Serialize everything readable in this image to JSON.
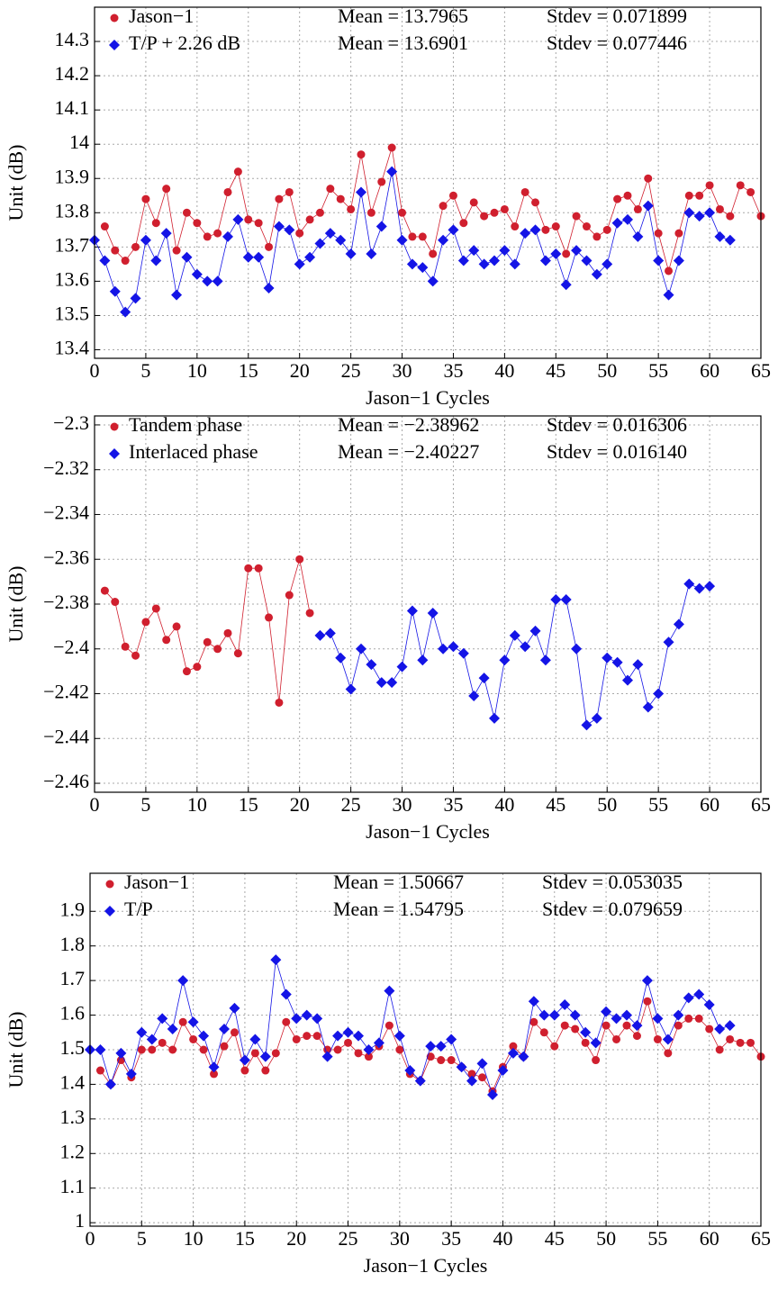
{
  "chart_data": [
    {
      "type": "line",
      "xlabel": "Jason−1 Cycles",
      "ylabel": "Unit (dB)",
      "grid": true,
      "legend": "upper left",
      "xlim": [
        0,
        65
      ],
      "xticks": [
        0,
        5,
        10,
        15,
        20,
        25,
        30,
        35,
        40,
        45,
        50,
        55,
        60,
        65
      ],
      "ylim": [
        13.375,
        14.4
      ],
      "yticks": [
        13.4,
        13.5,
        13.6,
        13.7,
        13.8,
        13.9,
        14,
        14.1,
        14.2,
        14.3
      ],
      "series": [
        {
          "name": "Jason−1",
          "mean_label": "Mean = 13.7965",
          "stdev_label": "Stdev = 0.071899",
          "color": "#d01f2e",
          "marker": "circle",
          "x": [
            1,
            2,
            3,
            4,
            5,
            6,
            7,
            8,
            9,
            10,
            11,
            12,
            13,
            14,
            15,
            16,
            17,
            18,
            19,
            20,
            21,
            22,
            23,
            24,
            25,
            26,
            27,
            28,
            29,
            30,
            31,
            32,
            33,
            34,
            35,
            36,
            37,
            38,
            39,
            40,
            41,
            42,
            43,
            44,
            45,
            46,
            47,
            48,
            49,
            50,
            51,
            52,
            53,
            54,
            55,
            56,
            57,
            58,
            59,
            60,
            61,
            62,
            63,
            64,
            65
          ],
          "values": [
            13.76,
            13.69,
            13.66,
            13.7,
            13.84,
            13.77,
            13.87,
            13.69,
            13.8,
            13.77,
            13.73,
            13.74,
            13.86,
            13.92,
            13.78,
            13.77,
            13.7,
            13.84,
            13.86,
            13.74,
            13.78,
            13.8,
            13.87,
            13.84,
            13.81,
            13.97,
            13.8,
            13.89,
            13.99,
            13.8,
            13.73,
            13.73,
            13.68,
            13.82,
            13.85,
            13.77,
            13.83,
            13.79,
            13.8,
            13.81,
            13.76,
            13.86,
            13.83,
            13.75,
            13.76,
            13.68,
            13.79,
            13.76,
            13.73,
            13.75,
            13.84,
            13.85,
            13.81,
            13.9,
            13.74,
            13.63,
            13.74,
            13.85,
            13.85,
            13.88,
            13.81,
            13.79,
            13.88,
            13.86,
            13.79
          ]
        },
        {
          "name": "T/P + 2.26 dB",
          "mean_label": "Mean = 13.6901",
          "stdev_label": "Stdev = 0.077446",
          "color": "#1414e6",
          "marker": "diamond",
          "x": [
            0,
            1,
            2,
            3,
            4,
            5,
            6,
            7,
            8,
            9,
            10,
            11,
            12,
            13,
            14,
            15,
            16,
            17,
            18,
            19,
            20,
            21,
            22,
            23,
            24,
            25,
            26,
            27,
            28,
            29,
            30,
            31,
            32,
            33,
            34,
            35,
            36,
            37,
            38,
            39,
            40,
            41,
            42,
            43,
            44,
            45,
            46,
            47,
            48,
            49,
            50,
            51,
            52,
            53,
            54,
            55,
            56,
            57,
            58,
            59,
            60,
            61,
            62
          ],
          "values": [
            13.72,
            13.66,
            13.57,
            13.51,
            13.55,
            13.72,
            13.66,
            13.74,
            13.56,
            13.67,
            13.62,
            13.6,
            13.6,
            13.73,
            13.78,
            13.67,
            13.67,
            13.58,
            13.76,
            13.75,
            13.65,
            13.67,
            13.71,
            13.74,
            13.72,
            13.68,
            13.86,
            13.68,
            13.76,
            13.92,
            13.72,
            13.65,
            13.64,
            13.6,
            13.72,
            13.75,
            13.66,
            13.69,
            13.65,
            13.66,
            13.69,
            13.65,
            13.74,
            13.75,
            13.66,
            13.68,
            13.59,
            13.69,
            13.66,
            13.62,
            13.65,
            13.77,
            13.78,
            13.73,
            13.82,
            13.66,
            13.56,
            13.66,
            13.8,
            13.79,
            13.8,
            13.73,
            13.72
          ]
        }
      ]
    },
    {
      "type": "line",
      "xlabel": "Jason−1 Cycles",
      "ylabel": "Unit (dB)",
      "grid": true,
      "legend": "upper left",
      "xlim": [
        0,
        65
      ],
      "xticks": [
        0,
        5,
        10,
        15,
        20,
        25,
        30,
        35,
        40,
        45,
        50,
        55,
        60,
        65
      ],
      "ylim": [
        -2.464,
        -2.296
      ],
      "yticks": [
        {
          "value": -2.46,
          "label": "−2.46"
        },
        {
          "value": -2.44,
          "label": "−2.44"
        },
        {
          "value": -2.42,
          "label": "−2.42"
        },
        {
          "value": -2.4,
          "label": "−2.4"
        },
        {
          "value": -2.38,
          "label": "−2.38"
        },
        {
          "value": -2.36,
          "label": "−2.36"
        },
        {
          "value": -2.34,
          "label": "−2.34"
        },
        {
          "value": -2.32,
          "label": "−2.32"
        },
        {
          "value": -2.3,
          "label": "−2.3"
        }
      ],
      "series": [
        {
          "name": "Tandem phase",
          "mean_label": "Mean = −2.38962",
          "stdev_label": "Stdev = 0.016306",
          "color": "#d01f2e",
          "marker": "circle",
          "x": [
            1,
            2,
            3,
            4,
            5,
            6,
            7,
            8,
            9,
            10,
            11,
            12,
            13,
            14,
            15,
            16,
            17,
            18,
            19,
            20,
            21
          ],
          "values": [
            -2.374,
            -2.379,
            -2.399,
            -2.403,
            -2.388,
            -2.382,
            -2.396,
            -2.39,
            -2.41,
            -2.408,
            -2.397,
            -2.4,
            -2.393,
            -2.402,
            -2.364,
            -2.364,
            -2.386,
            -2.424,
            -2.376,
            -2.36,
            -2.384
          ]
        },
        {
          "name": "Interlaced phase",
          "mean_label": "Mean = −2.40227",
          "stdev_label": "Stdev = 0.016140",
          "color": "#1414e6",
          "marker": "diamond",
          "x": [
            22,
            23,
            24,
            25,
            26,
            27,
            28,
            29,
            30,
            31,
            32,
            33,
            34,
            35,
            36,
            37,
            38,
            39,
            40,
            41,
            42,
            43,
            44,
            45,
            46,
            47,
            48,
            49,
            50,
            51,
            52,
            53,
            54,
            55,
            56,
            57,
            58,
            59,
            60
          ],
          "values": [
            -2.394,
            -2.393,
            -2.404,
            -2.418,
            -2.4,
            -2.407,
            -2.415,
            -2.415,
            -2.408,
            -2.383,
            -2.405,
            -2.384,
            -2.4,
            -2.399,
            -2.402,
            -2.421,
            -2.413,
            -2.431,
            -2.405,
            -2.394,
            -2.399,
            -2.392,
            -2.405,
            -2.378,
            -2.378,
            -2.4,
            -2.434,
            -2.431,
            -2.404,
            -2.406,
            -2.414,
            -2.407,
            -2.426,
            -2.42,
            -2.397,
            -2.389,
            -2.371,
            -2.373,
            -2.372
          ]
        }
      ]
    },
    {
      "type": "line",
      "xlabel": "Jason−1 Cycles",
      "ylabel": "Unit (dB)",
      "grid": true,
      "legend": "upper left",
      "xlim": [
        0,
        65
      ],
      "xticks": [
        0,
        5,
        10,
        15,
        20,
        25,
        30,
        35,
        40,
        45,
        50,
        55,
        60,
        65
      ],
      "ylim": [
        0.99,
        2.01
      ],
      "yticks": [
        1,
        1.1,
        1.2,
        1.3,
        1.4,
        1.5,
        1.6,
        1.7,
        1.8,
        1.9
      ],
      "series": [
        {
          "name": "Jason−1",
          "mean_label": "Mean = 1.50667",
          "stdev_label": "Stdev = 0.053035",
          "color": "#d01f2e",
          "marker": "circle",
          "x": [
            1,
            2,
            3,
            4,
            5,
            6,
            7,
            8,
            9,
            10,
            11,
            12,
            13,
            14,
            15,
            16,
            17,
            18,
            19,
            20,
            21,
            22,
            23,
            24,
            25,
            26,
            27,
            28,
            29,
            30,
            31,
            32,
            33,
            34,
            35,
            36,
            37,
            38,
            39,
            40,
            41,
            42,
            43,
            44,
            45,
            46,
            47,
            48,
            49,
            50,
            51,
            52,
            53,
            54,
            55,
            56,
            57,
            58,
            59,
            60,
            61,
            62,
            63,
            64,
            65
          ],
          "values": [
            1.44,
            1.4,
            1.47,
            1.42,
            1.5,
            1.5,
            1.52,
            1.5,
            1.58,
            1.53,
            1.5,
            1.43,
            1.51,
            1.55,
            1.44,
            1.49,
            1.44,
            1.49,
            1.58,
            1.53,
            1.54,
            1.54,
            1.5,
            1.5,
            1.52,
            1.49,
            1.48,
            1.51,
            1.57,
            1.5,
            1.43,
            1.41,
            1.48,
            1.47,
            1.47,
            1.45,
            1.43,
            1.42,
            1.38,
            1.45,
            1.51,
            1.48,
            1.58,
            1.55,
            1.51,
            1.57,
            1.56,
            1.52,
            1.47,
            1.57,
            1.53,
            1.57,
            1.54,
            1.64,
            1.53,
            1.49,
            1.57,
            1.59,
            1.59,
            1.56,
            1.5,
            1.53,
            1.52,
            1.52,
            1.48
          ]
        },
        {
          "name": "T/P",
          "mean_label": "Mean = 1.54795",
          "stdev_label": "Stdev = 0.079659",
          "color": "#1414e6",
          "marker": "diamond",
          "x": [
            0,
            1,
            2,
            3,
            4,
            5,
            6,
            7,
            8,
            9,
            10,
            11,
            12,
            13,
            14,
            15,
            16,
            17,
            18,
            19,
            20,
            21,
            22,
            23,
            24,
            25,
            26,
            27,
            28,
            29,
            30,
            31,
            32,
            33,
            34,
            35,
            36,
            37,
            38,
            39,
            40,
            41,
            42,
            43,
            44,
            45,
            46,
            47,
            48,
            49,
            50,
            51,
            52,
            53,
            54,
            55,
            56,
            57,
            58,
            59,
            60,
            61,
            62
          ],
          "values": [
            1.5,
            1.5,
            1.4,
            1.49,
            1.43,
            1.55,
            1.53,
            1.59,
            1.56,
            1.7,
            1.58,
            1.54,
            1.45,
            1.56,
            1.62,
            1.47,
            1.53,
            1.48,
            1.76,
            1.66,
            1.59,
            1.6,
            1.59,
            1.48,
            1.54,
            1.55,
            1.54,
            1.5,
            1.52,
            1.67,
            1.54,
            1.44,
            1.41,
            1.51,
            1.51,
            1.53,
            1.45,
            1.41,
            1.46,
            1.37,
            1.44,
            1.49,
            1.48,
            1.64,
            1.6,
            1.6,
            1.63,
            1.6,
            1.55,
            1.52,
            1.61,
            1.59,
            1.6,
            1.57,
            1.7,
            1.59,
            1.53,
            1.6,
            1.65,
            1.66,
            1.63,
            1.56,
            1.57
          ]
        }
      ]
    }
  ]
}
